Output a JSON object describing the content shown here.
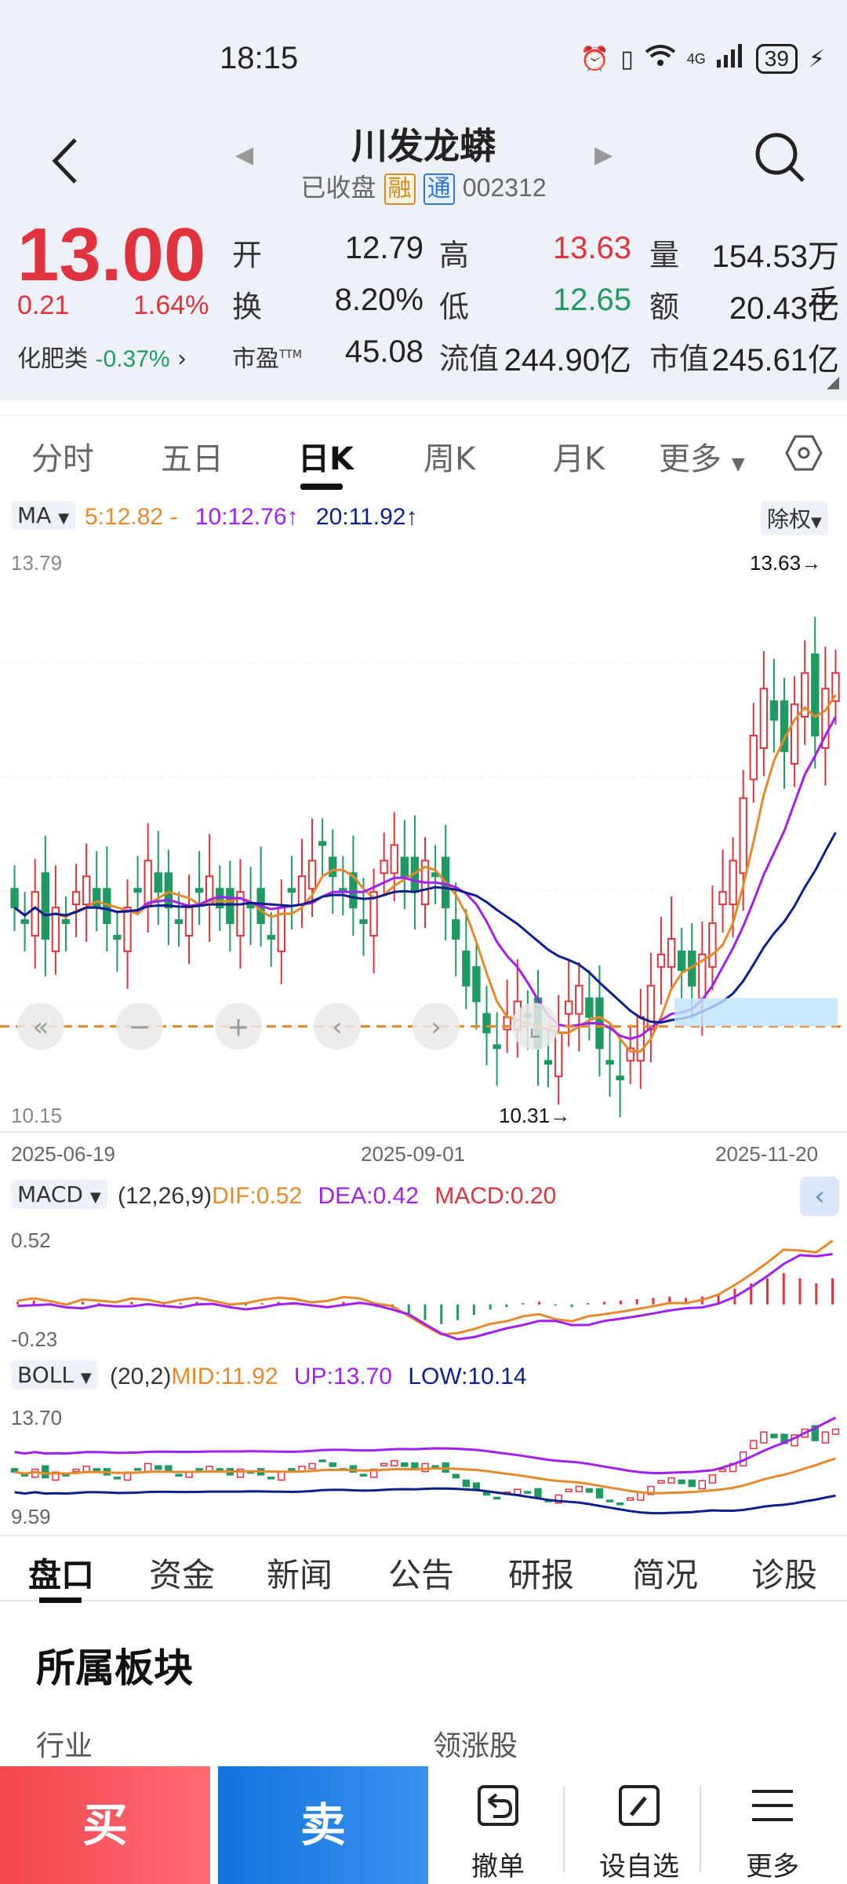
{
  "status_bar": {
    "time": "18:15",
    "battery": "39",
    "network": "4G"
  },
  "header": {
    "stock_name": "川发龙蟒",
    "status": "已收盘",
    "tag_rong": "融",
    "tag_tong": "通",
    "code": "002312"
  },
  "quote": {
    "price": "13.00",
    "change": "0.21",
    "change_pct": "1.64%",
    "sector_name": "化肥类",
    "sector_change": "-0.37%",
    "labels": {
      "open": "开",
      "high": "高",
      "volume": "量",
      "turnover": "换",
      "low": "低",
      "amount": "额",
      "pe": "市盈",
      "pe_sup": "TTM",
      "float_cap": "流值",
      "market_cap": "市值"
    },
    "open": "12.79",
    "high": "13.63",
    "volume": "154.53万手",
    "turnover": "8.20%",
    "low": "12.65",
    "amount": "20.43亿",
    "pe": "45.08",
    "float_cap": "244.90亿",
    "market_cap": "245.61亿"
  },
  "period_tabs": [
    "分时",
    "五日",
    "日K",
    "周K",
    "月K",
    "更多"
  ],
  "active_period": "日K",
  "ma_bar": {
    "selector": "MA",
    "ma5": "5:12.82 -",
    "ma10": "10:12.76↑",
    "ma20": "20:11.92↑",
    "adjust": "除权",
    "colors": {
      "ma5": "#e58a2b",
      "ma10": "#a020f0",
      "ma20": "#0c1f8a"
    }
  },
  "chart_data": [
    {
      "type": "candlestick",
      "title": "",
      "y_max_label": "13.79",
      "y_min_label": "10.15",
      "high_marker": "13.63→",
      "low_marker": "10.31→",
      "x_tick_labels": [
        "2025-06-19",
        "2025-09-01",
        "2025-11-20"
      ],
      "ylim": [
        10.15,
        13.79
      ],
      "series": [
        {
          "name": "5",
          "kind": "ma",
          "color": "#e58a2b"
        },
        {
          "name": "10",
          "kind": "ma",
          "color": "#a020f0"
        },
        {
          "name": "20",
          "kind": "ma",
          "color": "#0c1f8a"
        }
      ],
      "close_trend": [
        11.5,
        11.4,
        11.6,
        11.3,
        11.5,
        11.4,
        11.6,
        11.7,
        11.5,
        11.4,
        11.3,
        11.5,
        11.6,
        11.8,
        11.6,
        11.5,
        11.4,
        11.5,
        11.6,
        11.7,
        11.5,
        11.4,
        11.6,
        11.5,
        11.4,
        11.3,
        11.5,
        11.6,
        11.7,
        11.8,
        11.9,
        11.7,
        11.6,
        11.5,
        11.4,
        11.6,
        11.8,
        11.9,
        11.7,
        11.6,
        11.8,
        11.7,
        11.5,
        11.3,
        11.0,
        10.9,
        10.7,
        10.6,
        10.8,
        10.9,
        10.8,
        10.6,
        10.5,
        10.7,
        10.9,
        11.0,
        10.8,
        10.6,
        10.5,
        10.4,
        10.6,
        10.8,
        11.0,
        11.2,
        11.3,
        11.1,
        11.0,
        11.2,
        11.4,
        11.6,
        11.8,
        12.2,
        12.6,
        12.9,
        12.7,
        12.5,
        12.8,
        13.0,
        12.6,
        12.9,
        13.0
      ]
    },
    {
      "type": "bar",
      "title": "",
      "selector": "MACD",
      "params": "(12,26,9)",
      "dif": "DIF:0.52",
      "dea": "DEA:0.42",
      "macd": "MACD:0.20",
      "y_max_label": "0.52",
      "y_min_label": "-0.23",
      "ylim": [
        -0.23,
        0.52
      ],
      "values": [
        0.02,
        0.03,
        0.01,
        -0.01,
        0.02,
        0.01,
        0.0,
        0.02,
        0.01,
        -0.01,
        0.01,
        0.02,
        0.0,
        -0.02,
        -0.01,
        0.01,
        0.02,
        0.01,
        -0.01,
        0.0,
        0.02,
        0.01,
        -0.02,
        -0.03,
        -0.08,
        -0.12,
        -0.15,
        -0.12,
        -0.08,
        -0.04,
        -0.02,
        0.01,
        0.02,
        -0.01,
        -0.02,
        0.01,
        0.02,
        0.03,
        0.04,
        0.05,
        0.06,
        0.05,
        0.06,
        0.08,
        0.12,
        0.16,
        0.2,
        0.24,
        0.2,
        0.16,
        0.2
      ],
      "colors": {
        "dif": "#e58a2b",
        "dea": "#a020f0",
        "macd": "#e0333d"
      }
    },
    {
      "type": "line",
      "title": "",
      "selector": "BOLL",
      "params": "(20,2)",
      "mid": "MID:11.92",
      "up": "UP:13.70",
      "low": "LOW:10.14",
      "y_max_label": "13.70",
      "y_min_label": "9.59",
      "ylim": [
        9.59,
        13.7
      ],
      "colors": {
        "mid": "#e58a2b",
        "up": "#a020f0",
        "low": "#0c1f8a"
      }
    }
  ],
  "chart_tools": {
    "icons": [
      "double-left-icon",
      "zoom-out-icon",
      "zoom-in-icon",
      "left-icon",
      "right-icon",
      "expand-icon"
    ]
  },
  "info_tabs": [
    "盘口",
    "资金",
    "新闻",
    "公告",
    "研报",
    "简况",
    "诊股"
  ],
  "active_info_tab": "盘口",
  "section": {
    "title": "所属板块",
    "industry_label": "行业",
    "leader_label": "领涨股"
  },
  "bottom_bar": {
    "buy": "买",
    "sell": "卖",
    "cancel": "撤单",
    "watchlist": "设自选",
    "more": "更多"
  }
}
